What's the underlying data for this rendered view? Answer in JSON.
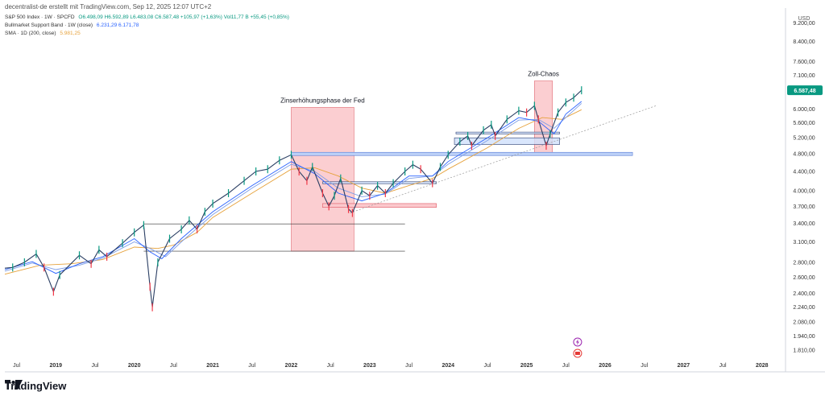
{
  "header": {
    "attribution": "decentralist-de erstellt mit TradingView.com, Sep 12, 2025 12:07 UTC+2"
  },
  "legend": {
    "symbol": "S&P 500 Index · 1W · SPCFD",
    "ohlc": "O6.498,09  H6.592,89  L6.483,08  C6.587,48  +105,97 (+1,63%)  Vol11,77 B  +55,45 (+0,85%)",
    "band_label": "Bullmarket Support Band · 1W (close)",
    "band_values": "6.231,29  6.171,78",
    "sma_label": "SMA · 1D (200, close)",
    "sma_value": "5.981,25"
  },
  "footer": {
    "brand": "TradingView"
  },
  "colors": {
    "up": "#089981",
    "down": "#f23645",
    "band_fast": "#2962ff",
    "band_slow": "#7e9ee6",
    "sma": "#e6a23c",
    "zone": "#f7a5ab",
    "price_tag": "#089981"
  },
  "chart_data": {
    "type": "line",
    "currency": "USD",
    "y_scale": "log",
    "ylim": [
      1760,
      9600
    ],
    "y_ticks": [
      9200,
      8400,
      7600,
      7100,
      6600,
      6000,
      5600,
      5200,
      4800,
      4400,
      4000,
      3700,
      3400,
      3100,
      2800,
      2600,
      2400,
      2240,
      2080,
      1940,
      1810
    ],
    "y_tick_labels": [
      "9.200,00",
      "8.400,00",
      "7.600,00",
      "7.100,00",
      "6.600,00",
      "6.000,00",
      "5.600,00",
      "5.200,00",
      "4.800,00",
      "4.400,00",
      "4.000,00",
      "3.700,00",
      "3.400,00",
      "3.100,00",
      "2.800,00",
      "2.600,00",
      "2.400,00",
      "2.240,00",
      "2.080,00",
      "1.940,00",
      "1.810,00"
    ],
    "xlim": [
      2018.35,
      2028.3
    ],
    "x_ticks": [
      2018.5,
      2019.0,
      2019.5,
      2020.0,
      2020.5,
      2021.0,
      2021.5,
      2022.0,
      2022.5,
      2023.0,
      2023.5,
      2024.0,
      2024.5,
      2025.0,
      2025.5,
      2026.0,
      2026.5,
      2027.0,
      2027.5,
      2028.0
    ],
    "x_tick_labels": [
      "Jul",
      "2019",
      "Jul",
      "2020",
      "Jul",
      "2021",
      "Jul",
      "2022",
      "Jul",
      "2023",
      "Jul",
      "2024",
      "Jul",
      "2025",
      "Jul",
      "2026",
      "Jul",
      "2027",
      "Jul",
      "2028"
    ],
    "last_price_label": "6.587,48",
    "series": [
      {
        "key": "price",
        "points": [
          [
            2018.35,
            2720
          ],
          [
            2018.45,
            2730
          ],
          [
            2018.6,
            2800
          ],
          [
            2018.75,
            2920
          ],
          [
            2018.85,
            2730
          ],
          [
            2018.97,
            2420
          ],
          [
            2019.05,
            2630
          ],
          [
            2019.3,
            2900
          ],
          [
            2019.45,
            2780
          ],
          [
            2019.55,
            2980
          ],
          [
            2019.65,
            2880
          ],
          [
            2019.85,
            3080
          ],
          [
            2020.0,
            3250
          ],
          [
            2020.12,
            3370
          ],
          [
            2020.2,
            2480
          ],
          [
            2020.23,
            2240
          ],
          [
            2020.3,
            2800
          ],
          [
            2020.45,
            3150
          ],
          [
            2020.6,
            3300
          ],
          [
            2020.7,
            3450
          ],
          [
            2020.8,
            3300
          ],
          [
            2020.9,
            3600
          ],
          [
            2021.0,
            3750
          ],
          [
            2021.2,
            3950
          ],
          [
            2021.4,
            4200
          ],
          [
            2021.55,
            4400
          ],
          [
            2021.7,
            4450
          ],
          [
            2021.85,
            4650
          ],
          [
            2022.0,
            4780
          ],
          [
            2022.1,
            4400
          ],
          [
            2022.2,
            4200
          ],
          [
            2022.27,
            4500
          ],
          [
            2022.4,
            3950
          ],
          [
            2022.48,
            3700
          ],
          [
            2022.55,
            3900
          ],
          [
            2022.63,
            4250
          ],
          [
            2022.73,
            3650
          ],
          [
            2022.78,
            3580
          ],
          [
            2022.9,
            4000
          ],
          [
            2023.0,
            3900
          ],
          [
            2023.1,
            4100
          ],
          [
            2023.2,
            3950
          ],
          [
            2023.3,
            4150
          ],
          [
            2023.45,
            4400
          ],
          [
            2023.55,
            4550
          ],
          [
            2023.65,
            4450
          ],
          [
            2023.8,
            4150
          ],
          [
            2023.9,
            4500
          ],
          [
            2024.0,
            4780
          ],
          [
            2024.15,
            5100
          ],
          [
            2024.25,
            5250
          ],
          [
            2024.3,
            5000
          ],
          [
            2024.45,
            5400
          ],
          [
            2024.55,
            5550
          ],
          [
            2024.6,
            5250
          ],
          [
            2024.75,
            5700
          ],
          [
            2024.9,
            5950
          ],
          [
            2025.0,
            5900
          ],
          [
            2025.1,
            6100
          ],
          [
            2025.15,
            5700
          ],
          [
            2025.25,
            5000
          ],
          [
            2025.3,
            5300
          ],
          [
            2025.4,
            5900
          ],
          [
            2025.5,
            6200
          ],
          [
            2025.6,
            6350
          ],
          [
            2025.7,
            6587.48
          ]
        ]
      },
      {
        "key": "band_fast",
        "points": [
          [
            2018.35,
            2700
          ],
          [
            2018.7,
            2810
          ],
          [
            2019.0,
            2650
          ],
          [
            2019.3,
            2780
          ],
          [
            2019.6,
            2880
          ],
          [
            2020.0,
            3150
          ],
          [
            2020.2,
            2950
          ],
          [
            2020.35,
            2850
          ],
          [
            2020.6,
            3150
          ],
          [
            2021.0,
            3600
          ],
          [
            2021.5,
            4100
          ],
          [
            2022.0,
            4620
          ],
          [
            2022.3,
            4350
          ],
          [
            2022.6,
            3950
          ],
          [
            2022.9,
            3800
          ],
          [
            2023.2,
            3950
          ],
          [
            2023.5,
            4300
          ],
          [
            2023.8,
            4300
          ],
          [
            2024.0,
            4620
          ],
          [
            2024.5,
            5200
          ],
          [
            2024.9,
            5750
          ],
          [
            2025.15,
            5650
          ],
          [
            2025.35,
            5300
          ],
          [
            2025.5,
            5850
          ],
          [
            2025.7,
            6231
          ]
        ]
      },
      {
        "key": "band_slow",
        "points": [
          [
            2018.35,
            2680
          ],
          [
            2018.7,
            2790
          ],
          [
            2019.0,
            2700
          ],
          [
            2019.3,
            2760
          ],
          [
            2019.6,
            2860
          ],
          [
            2020.0,
            3100
          ],
          [
            2020.2,
            3000
          ],
          [
            2020.4,
            2880
          ],
          [
            2020.6,
            3100
          ],
          [
            2021.0,
            3550
          ],
          [
            2021.5,
            4050
          ],
          [
            2022.0,
            4560
          ],
          [
            2022.3,
            4400
          ],
          [
            2022.6,
            4050
          ],
          [
            2022.9,
            3880
          ],
          [
            2023.2,
            3930
          ],
          [
            2023.5,
            4250
          ],
          [
            2023.8,
            4300
          ],
          [
            2024.0,
            4560
          ],
          [
            2024.5,
            5130
          ],
          [
            2024.9,
            5680
          ],
          [
            2025.15,
            5700
          ],
          [
            2025.35,
            5450
          ],
          [
            2025.5,
            5750
          ],
          [
            2025.7,
            6172
          ]
        ]
      },
      {
        "key": "sma",
        "points": [
          [
            2018.35,
            2640
          ],
          [
            2018.8,
            2760
          ],
          [
            2019.2,
            2780
          ],
          [
            2019.6,
            2840
          ],
          [
            2020.0,
            3020
          ],
          [
            2020.3,
            3000
          ],
          [
            2020.5,
            3050
          ],
          [
            2020.8,
            3250
          ],
          [
            2021.0,
            3500
          ],
          [
            2021.5,
            3950
          ],
          [
            2022.0,
            4450
          ],
          [
            2022.3,
            4480
          ],
          [
            2022.6,
            4300
          ],
          [
            2022.9,
            4050
          ],
          [
            2023.2,
            3950
          ],
          [
            2023.5,
            4100
          ],
          [
            2023.8,
            4250
          ],
          [
            2024.0,
            4450
          ],
          [
            2024.5,
            4950
          ],
          [
            2024.9,
            5450
          ],
          [
            2025.2,
            5750
          ],
          [
            2025.45,
            5700
          ],
          [
            2025.7,
            5981
          ]
        ]
      }
    ],
    "annotations": [
      {
        "text": "Zinserhöhungsphase der Fed",
        "x": [
          2022.0,
          2022.8
        ],
        "y": [
          2960,
          6050
        ]
      },
      {
        "text": "Zoll-Chaos",
        "x": [
          2025.1,
          2025.33
        ],
        "y": [
          4800,
          6900
        ]
      }
    ],
    "levels": [
      {
        "x": [
          2020.12,
          2023.45
        ],
        "y": 3390
      },
      {
        "x": [
          2020.12,
          2023.45
        ],
        "y": 2960
      },
      {
        "x": [
          2022.0,
          2026.35
        ],
        "y": 4800,
        "style": "blue-band"
      },
      {
        "x": [
          2022.4,
          2023.85
        ],
        "y": 3750,
        "style": "red-box",
        "y2": 3680
      },
      {
        "x": [
          2022.4,
          2023.85
        ],
        "y": 4180,
        "style": "blue-box",
        "y2": 4140
      },
      {
        "x": [
          2024.08,
          2025.42
        ],
        "y": 5200,
        "style": "blue-box",
        "y2": 5030
      },
      {
        "x": [
          2024.1,
          2025.42
        ],
        "y": 5350,
        "style": "blue-box",
        "y2": 5300
      }
    ]
  }
}
